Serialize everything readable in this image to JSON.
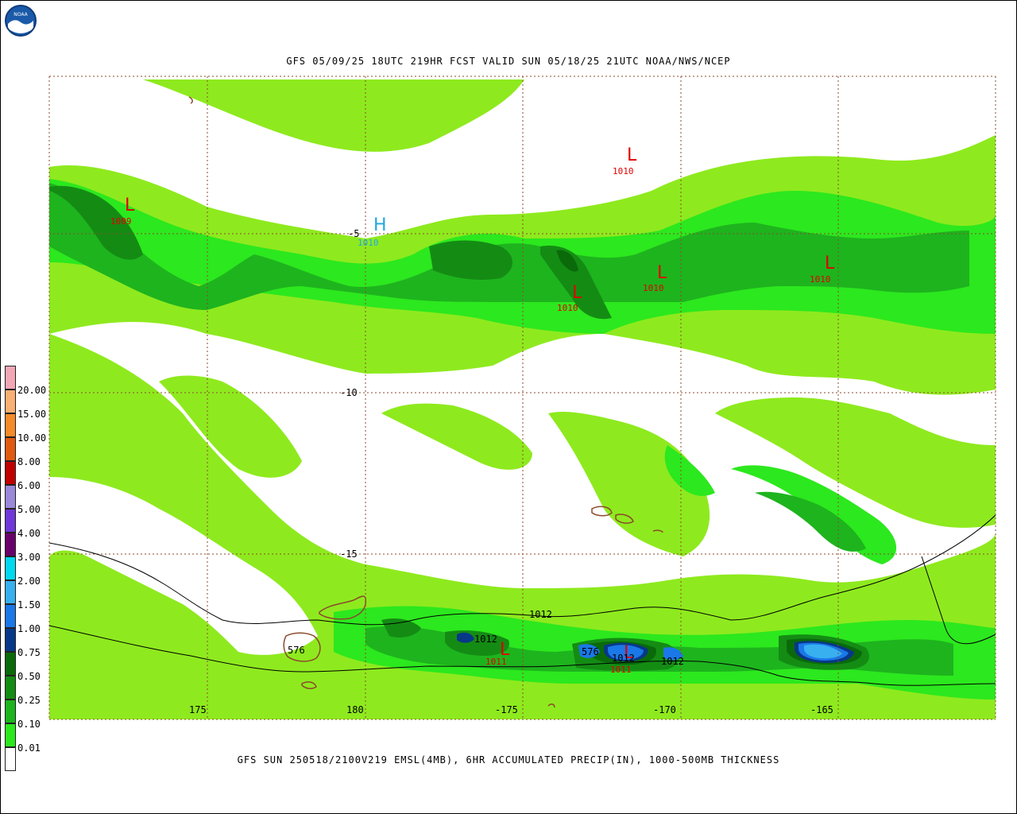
{
  "title": "GFS 05/09/25 18UTC 219HR FCST VALID SUN 05/18/25 21UTC NOAA/NWS/NCEP",
  "footer": "GFS SUN 250518/2100V219 EMSL(4MB), 6HR ACCUMULATED PRECIP(IN), 1000-500MB THICKNESS",
  "logo_text": "NOAA",
  "lon_labels": [
    "175",
    "180",
    "-175",
    "-170",
    "-165"
  ],
  "lat_labels": [
    "-5",
    "-10",
    "-15"
  ],
  "legend": {
    "levels": [
      "20.00",
      "15.00",
      "10.00",
      "8.00",
      "6.00",
      "5.00",
      "4.00",
      "3.00",
      "2.00",
      "1.50",
      "1.00",
      "0.75",
      "0.50",
      "0.25",
      "0.10",
      "0.01"
    ],
    "colors": [
      "#f3a7b6",
      "#f9b072",
      "#f58b2a",
      "#f06010",
      "#d40000",
      "#b00000",
      "#9a88d8",
      "#7038d8",
      "#8e18c8",
      "#6a006a",
      "#00d8f0",
      "#38b0f0",
      "#1a78e8",
      "#1846a8",
      "#083888",
      "#0a6a0a",
      "#148c14",
      "#1eb41e",
      "#2ce81e",
      "#8eea1e",
      "#ffffff"
    ]
  },
  "highs": [
    {
      "label": "H",
      "value": "1010"
    }
  ],
  "lows": [
    {
      "label": "L",
      "value": "1009"
    },
    {
      "label": "L",
      "value": "1010"
    },
    {
      "label": "L",
      "value": "1010"
    },
    {
      "label": "L",
      "value": "1010"
    },
    {
      "label": "L",
      "value": "1010"
    },
    {
      "label": "L",
      "value": "1011"
    },
    {
      "label": "L",
      "value": "1011"
    }
  ],
  "isobar_labels": [
    "1012",
    "1012",
    "1012",
    "1012"
  ],
  "thickness_labels": [
    "576",
    "576"
  ],
  "colors": {
    "precip_001": "#8eea1e",
    "precip_010": "#2ce81e",
    "precip_025": "#1eb41e",
    "precip_050": "#148c14",
    "precip_075": "#0a6a0a",
    "precip_100": "#083888",
    "precip_150": "#1a78e8",
    "precip_200": "#38b0f0",
    "high": "#20a8e0",
    "low": "#e00000",
    "land": "#8b4a2b",
    "grid": "#8b4a2b"
  }
}
